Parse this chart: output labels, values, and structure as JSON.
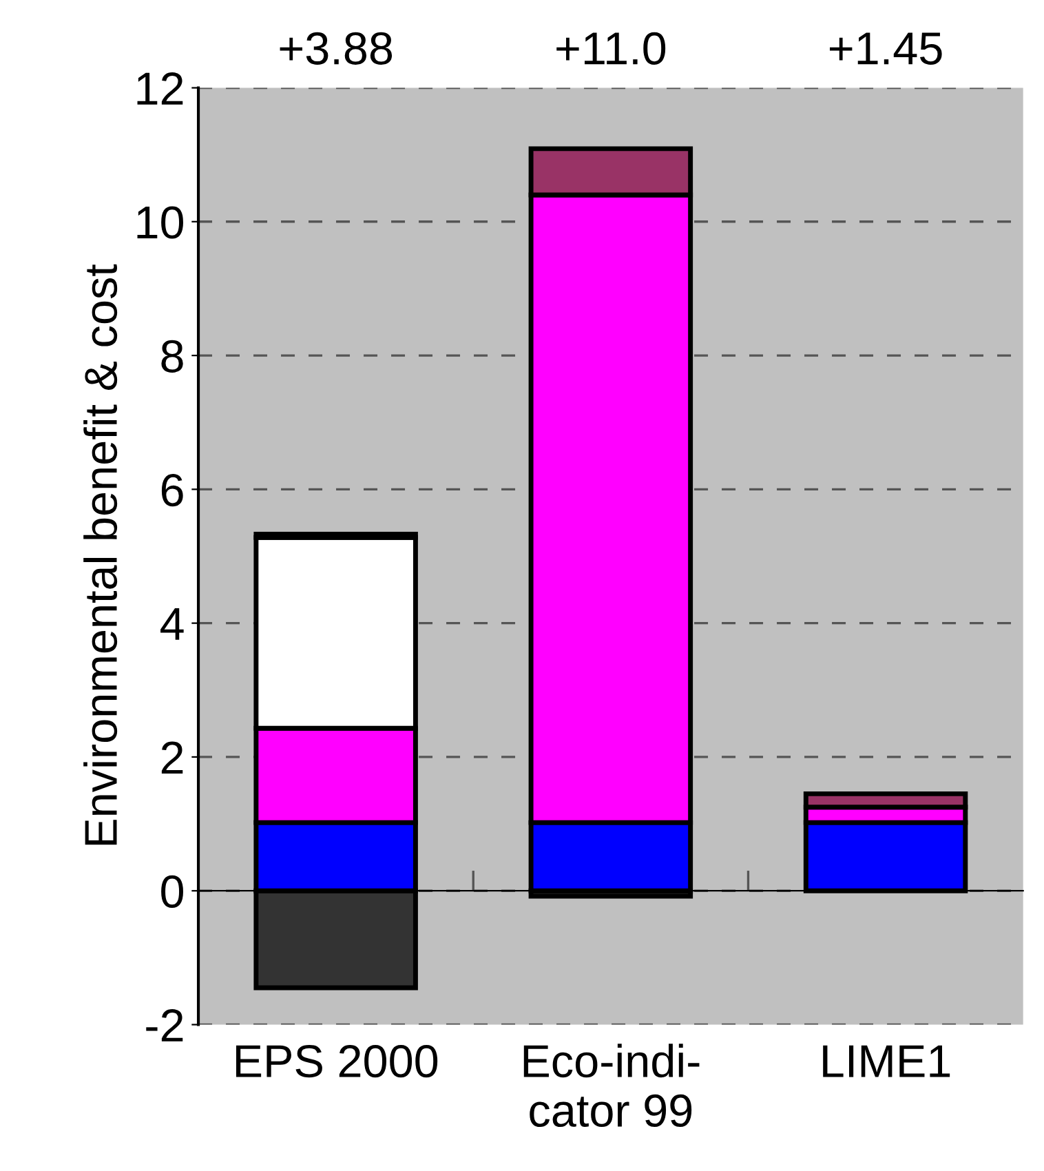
{
  "chart_data": {
    "type": "bar",
    "stacked": true,
    "ylabel": "Environmental benefit & cost",
    "categories": [
      "EPS 2000",
      "Eco-indi-\ncator 99",
      "LIME1"
    ],
    "series": [
      {
        "color": "#333333",
        "values": [
          -1.45,
          -0.08,
          null
        ]
      },
      {
        "color": "#0000ff",
        "values": [
          1.02,
          1.02,
          1.02
        ]
      },
      {
        "color": "#ff00ff",
        "values": [
          1.41,
          9.38,
          0.23
        ]
      },
      {
        "color": "#ffffff",
        "values": [
          2.85,
          null,
          null
        ]
      },
      {
        "color": "#993366",
        "values": [
          0.05,
          0.69,
          0.2
        ]
      }
    ],
    "annotations": [
      "+3.88",
      "+11.0",
      "+1.45"
    ],
    "ylim": [
      -2,
      12
    ],
    "yticks": [
      -2,
      0,
      2,
      4,
      6,
      8,
      10,
      12
    ],
    "grid": "y",
    "legend": false
  }
}
